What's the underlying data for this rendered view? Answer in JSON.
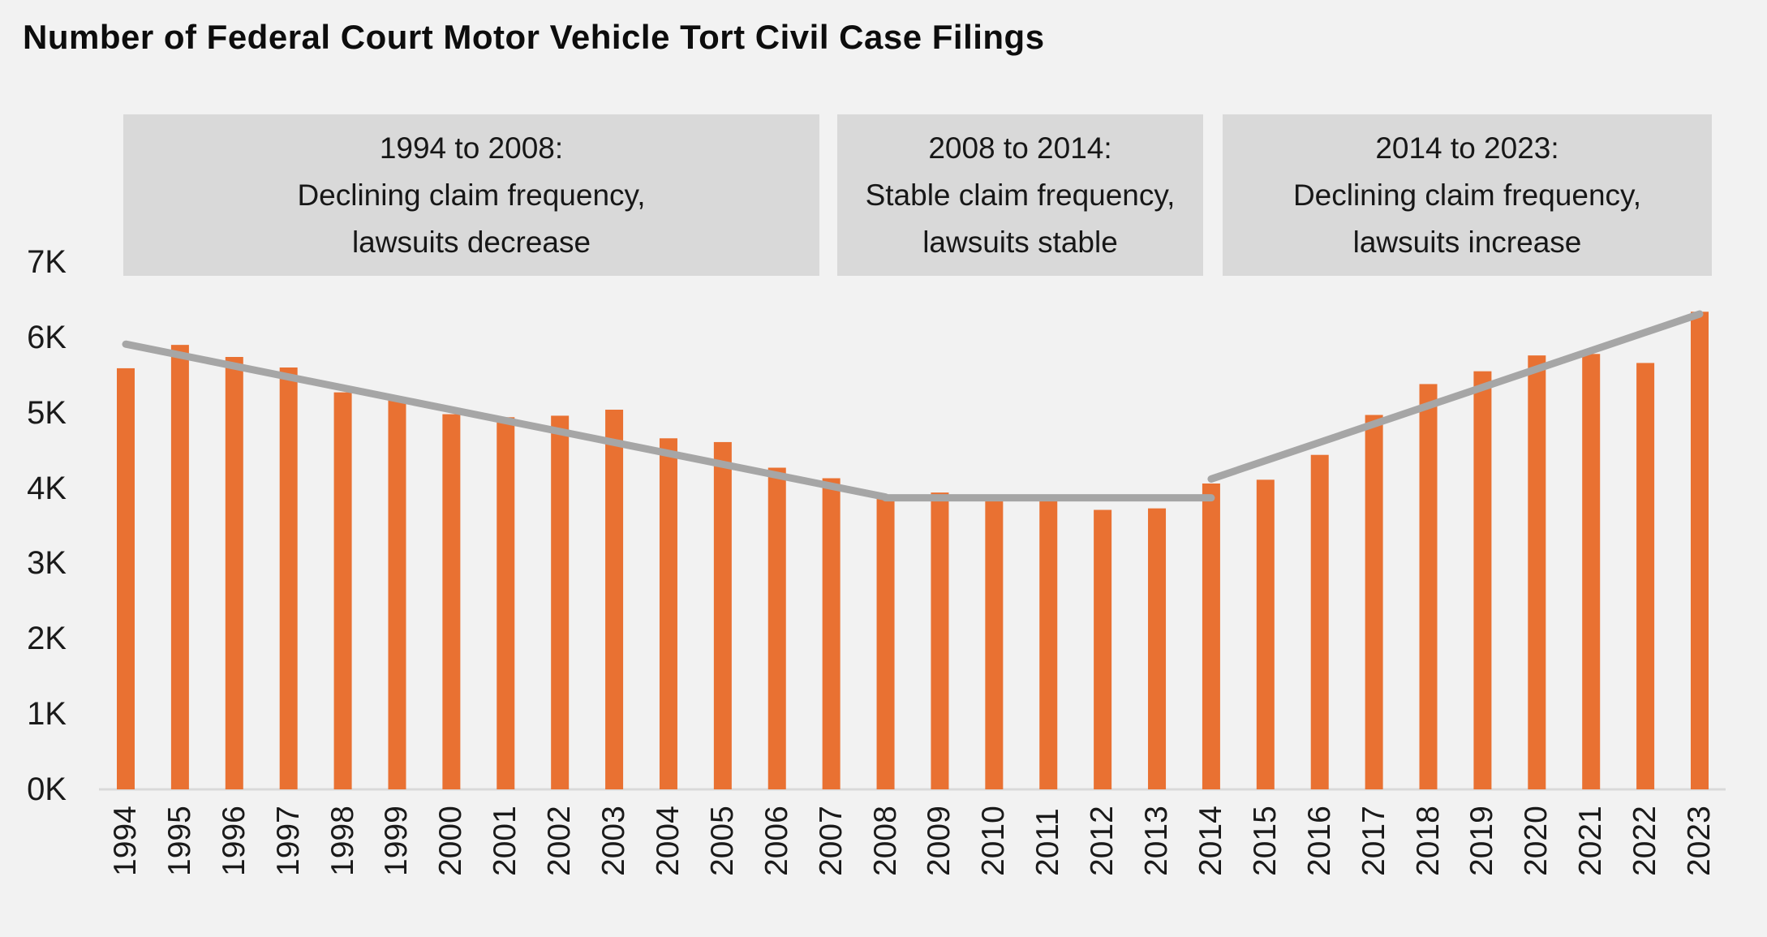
{
  "title": "Number of Federal Court Motor Vehicle Tort Civil Case Filings",
  "annotations": [
    {
      "line1": "1994 to 2008:",
      "line2": "Declining claim frequency,",
      "line3": "lawsuits decrease"
    },
    {
      "line1": "2008 to 2014:",
      "line2": "Stable claim frequency,",
      "line3": "lawsuits stable"
    },
    {
      "line1": "2014 to 2023:",
      "line2": "Declining claim frequency,",
      "line3": "lawsuits increase"
    }
  ],
  "chart_data": {
    "type": "bar",
    "title": "Number of Federal Court Motor Vehicle Tort Civil Case Filings",
    "categories": [
      "1994",
      "1995",
      "1996",
      "1997",
      "1998",
      "1999",
      "2000",
      "2001",
      "2002",
      "2003",
      "2004",
      "2005",
      "2006",
      "2007",
      "2008",
      "2009",
      "2010",
      "2011",
      "2012",
      "2013",
      "2014",
      "2015",
      "2016",
      "2017",
      "2018",
      "2019",
      "2020",
      "2021",
      "2022",
      "2023"
    ],
    "values": [
      5590,
      5900,
      5740,
      5600,
      5270,
      5190,
      4980,
      4940,
      4960,
      5040,
      4660,
      4610,
      4270,
      4130,
      3890,
      3940,
      3850,
      3840,
      3710,
      3730,
      4060,
      4110,
      4440,
      4970,
      5380,
      5550,
      5760,
      5780,
      5660,
      6340
    ],
    "xlabel": "",
    "ylabel": "",
    "ylim": [
      0,
      7000
    ],
    "ytick_labels": [
      "0K",
      "1K",
      "2K",
      "3K",
      "4K",
      "5K",
      "6K",
      "7K"
    ],
    "grid": false,
    "legend": "none",
    "trend_segments": [
      {
        "from": {
          "year": "1994",
          "value": 5910
        },
        "to": {
          "year": "2008",
          "value": 3880
        }
      },
      {
        "from": {
          "year": "2008",
          "value": 3870
        },
        "to": {
          "year": "2014",
          "value": 3870
        }
      },
      {
        "from": {
          "year": "2014",
          "value": 4120
        },
        "to": {
          "year": "2023",
          "value": 6310
        }
      }
    ],
    "colors": {
      "bar": "#E97132",
      "trend_line": "#A6A6A6",
      "axis_line": "#D9D9D9",
      "annotation_box_fill": "#D9D9D9",
      "background": "#F2F2F2",
      "text": "#1a1a1a"
    }
  }
}
